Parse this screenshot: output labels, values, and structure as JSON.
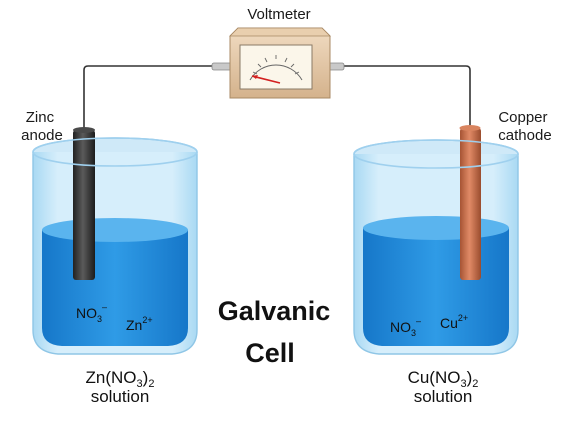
{
  "title_line1": "Galvanic",
  "title_line2": "Cell",
  "voltmeter": {
    "label": "Voltmeter"
  },
  "left": {
    "electrode_line1": "Zinc",
    "electrode_line2": "anode",
    "ion_anion_base": "NO",
    "ion_anion_sub": "3",
    "ion_anion_sup": "–",
    "ion_cation_base": "Zn",
    "ion_cation_sup": "2+",
    "solution_formula_a": "Zn(NO",
    "solution_formula_sub": "3",
    "solution_formula_b": ")",
    "solution_formula_sub2": "2",
    "solution_word": "solution"
  },
  "right": {
    "electrode_line1": "Copper",
    "electrode_line2": "cathode",
    "ion_anion_base": "NO",
    "ion_anion_sub": "3",
    "ion_anion_sup": "–",
    "ion_cation_base": "Cu",
    "ion_cation_sup": "2+",
    "solution_formula_a": "Cu(NO",
    "solution_formula_sub": "3",
    "solution_formula_b": ")",
    "solution_formula_sub2": "2",
    "solution_word": "solution"
  },
  "colors": {
    "solution": "#1e88d8",
    "solution_top": "#5ab4ee",
    "glass": "#bfe3f7",
    "zinc": "#3a3a3a",
    "copper": "#c8714e",
    "wire": "#333333",
    "needle": "#d32020"
  }
}
